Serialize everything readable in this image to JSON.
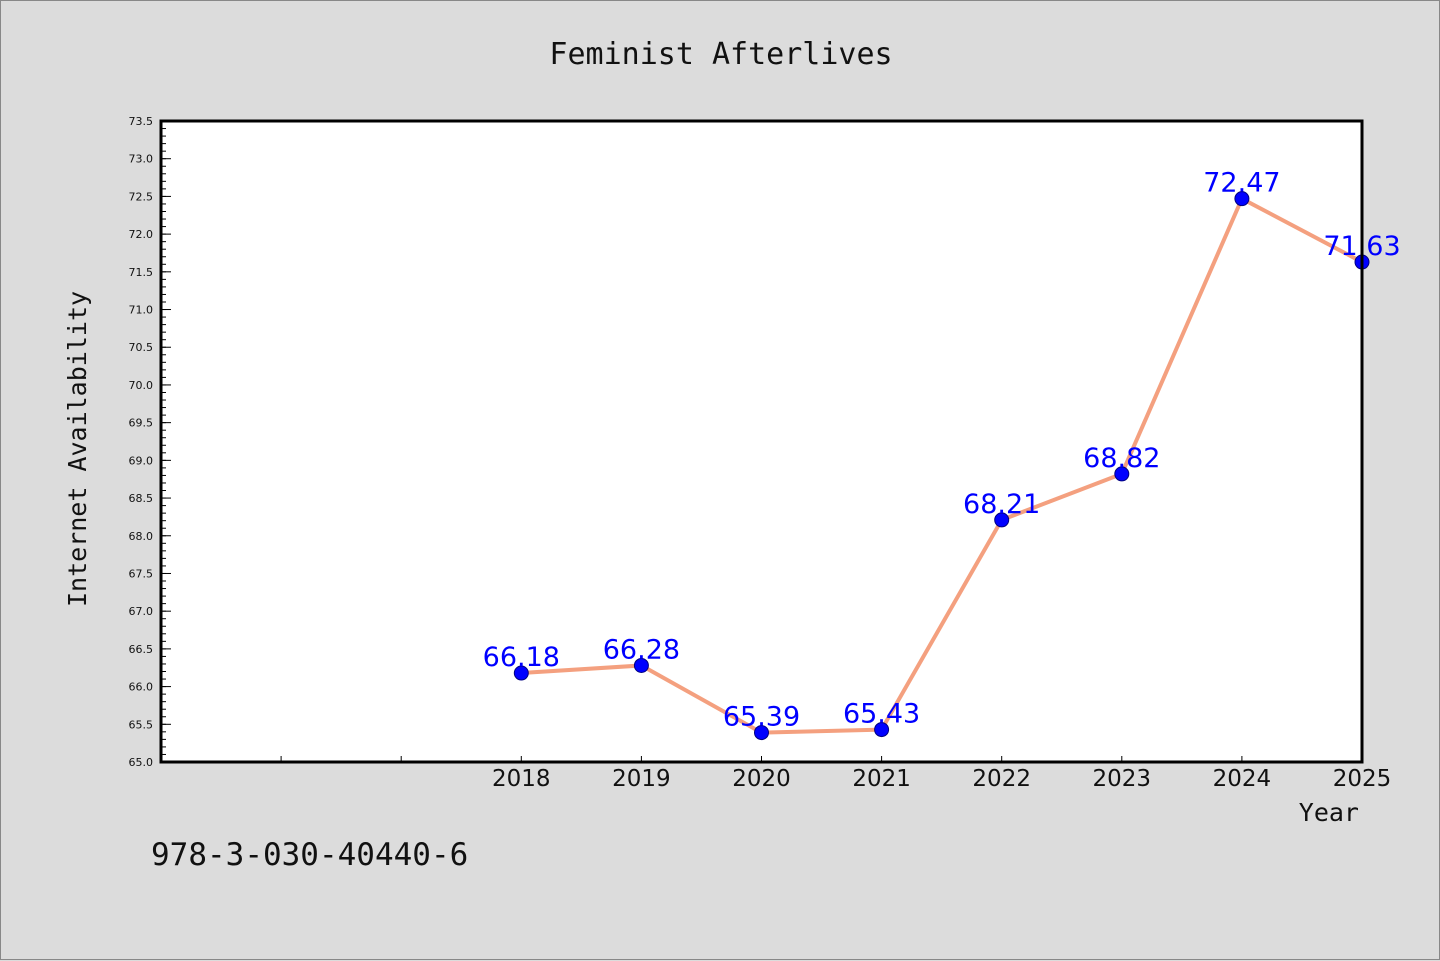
{
  "chart_data": {
    "type": "line",
    "title": "Feminist Afterlives",
    "xlabel": "Year",
    "ylabel": "Internet Availability",
    "x": [
      "2018",
      "2019",
      "2020",
      "2021",
      "2022",
      "2023",
      "2024",
      "2025"
    ],
    "series": [
      {
        "values": [
          66.18,
          66.28,
          65.39,
          65.43,
          68.21,
          68.82,
          72.47,
          71.63
        ]
      }
    ],
    "data_labels": [
      "66.18",
      "66.28",
      "65.39",
      "65.43",
      "68.21",
      "68.82",
      "72.47",
      "71.63"
    ],
    "ylim": [
      65.0,
      73.5
    ],
    "y_ticks": [
      "65.0",
      "65.5",
      "66.0",
      "66.5",
      "67.0",
      "67.5",
      "68.0",
      "68.5",
      "69.0",
      "69.5",
      "70.0",
      "70.5",
      "71.0",
      "71.5",
      "72.0",
      "72.5",
      "73.0",
      "73.5"
    ],
    "grid": false,
    "line_color": "#f4a07f",
    "marker_color": "#0000ff",
    "label_color": "#0000ff"
  },
  "footer": {
    "isbn": "978-3-030-40440-6"
  }
}
